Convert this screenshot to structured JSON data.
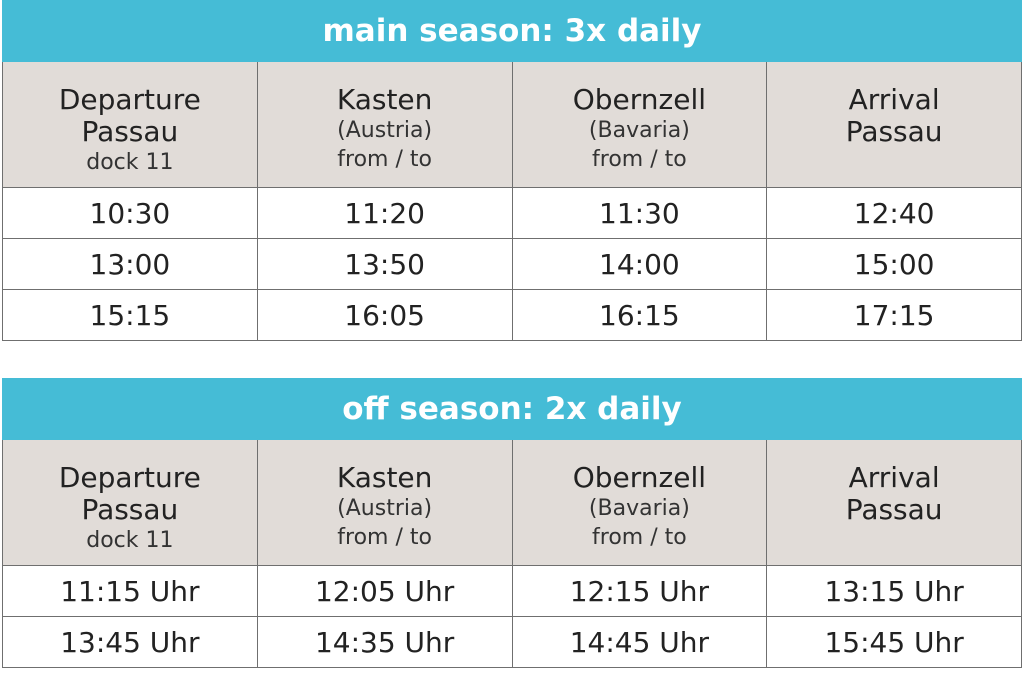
{
  "tables": [
    {
      "title": "main season: 3x daily",
      "header": [
        {
          "main": [
            "Departure",
            "Passau"
          ],
          "sub": [
            "dock 11"
          ]
        },
        {
          "main": [
            "Kasten"
          ],
          "sub": [
            "(Austria)",
            "from / to"
          ]
        },
        {
          "main": [
            "Obernzell"
          ],
          "sub": [
            "(Bavaria)",
            "from / to"
          ]
        },
        {
          "main": [
            "Arrival",
            "Passau"
          ],
          "sub": []
        }
      ],
      "rows": [
        [
          "10:30",
          "11:20",
          "11:30",
          "12:40"
        ],
        [
          "13:00",
          "13:50",
          "14:00",
          "15:00"
        ],
        [
          "15:15",
          "16:05",
          "16:15",
          "17:15"
        ]
      ]
    },
    {
      "title": "off season: 2x daily",
      "header": [
        {
          "main": [
            "Departure",
            "Passau"
          ],
          "sub": [
            "dock 11"
          ]
        },
        {
          "main": [
            "Kasten"
          ],
          "sub": [
            "(Austria)",
            "from / to"
          ]
        },
        {
          "main": [
            "Obernzell"
          ],
          "sub": [
            "(Bavaria)",
            "from / to"
          ]
        },
        {
          "main": [
            "Arrival",
            "Passau"
          ],
          "sub": []
        }
      ],
      "rows": [
        [
          "11:15 Uhr",
          "12:05 Uhr",
          "12:15 Uhr",
          "13:15 Uhr"
        ],
        [
          "13:45 Uhr",
          "14:35 Uhr",
          "14:45 Uhr",
          "15:45 Uhr"
        ]
      ]
    }
  ]
}
